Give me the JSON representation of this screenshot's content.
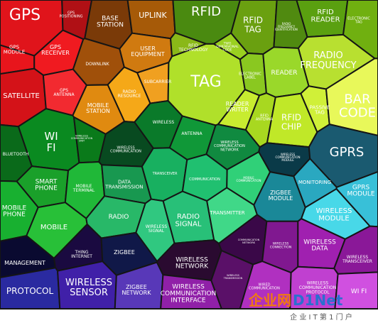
{
  "cells": [
    {
      "label": [
        "GPS"
      ]
    },
    {
      "label": [
        "GPS",
        "POSITIONING"
      ]
    },
    {
      "label": [
        "GPS",
        "MODULE"
      ]
    },
    {
      "label": [
        "GPS",
        "RECEIVER"
      ]
    },
    {
      "label": [
        "SATELLITE"
      ]
    },
    {
      "label": [
        "GPS",
        "ANTENNA"
      ]
    },
    {
      "label": [
        "BASE",
        "STATION"
      ]
    },
    {
      "label": [
        "UPLINK"
      ]
    },
    {
      "label": [
        "USER",
        "EQUIPMENT"
      ]
    },
    {
      "label": [
        "DOWNLINK"
      ]
    },
    {
      "label": [
        "SUBCARRIER"
      ]
    },
    {
      "label": [
        "RADIO",
        "RESOURCE"
      ]
    },
    {
      "label": [
        "MOBILE",
        "STATION"
      ]
    },
    {
      "label": [
        "RFID"
      ]
    },
    {
      "label": [
        "RFID",
        "TECHNOLOGY"
      ]
    },
    {
      "label": [
        "TWO",
        "DIMENSIONAL",
        "CODE"
      ]
    },
    {
      "label": [
        "RFID",
        "TAG"
      ]
    },
    {
      "label": [
        "RADIO",
        "FREQUENCY",
        "IDENTIFICATION"
      ]
    },
    {
      "label": [
        "RFID",
        "READER"
      ]
    },
    {
      "label": [
        "ELECTRONIC",
        "TAG"
      ]
    },
    {
      "label": [
        "RADIO",
        "FREQUENCY"
      ]
    },
    {
      "label": [
        "TAG"
      ]
    },
    {
      "label": [
        "ELECTRONIC",
        "LABEL"
      ]
    },
    {
      "label": [
        "READER"
      ]
    },
    {
      "label": [
        "READER",
        "WRITER"
      ]
    },
    {
      "label": [
        "RFID",
        "ANTENNA"
      ]
    },
    {
      "label": [
        "RFID",
        "CHIP"
      ]
    },
    {
      "label": [
        "PASSIVE",
        "TAG"
      ]
    },
    {
      "label": [
        "BAR",
        "CODE"
      ]
    },
    {
      "label": [
        "WI",
        "FI"
      ]
    },
    {
      "label": [
        "BLUETOOTH"
      ]
    },
    {
      "label": [
        "WIRELESS",
        "COMMUNICATION",
        "UNIT"
      ]
    },
    {
      "label": [
        "SMART",
        "PHONE"
      ]
    },
    {
      "label": [
        "MOBILE",
        "TERMINAL"
      ]
    },
    {
      "label": [
        "MOBILE",
        "PHONE"
      ]
    },
    {
      "label": [
        "MOBILE"
      ]
    },
    {
      "label": [
        "WIRELESS"
      ]
    },
    {
      "label": [
        "ANTENNA"
      ]
    },
    {
      "label": [
        "WIRELESS",
        "COMMUNICATION",
        "NETWORK"
      ]
    },
    {
      "label": [
        "WIRELESS",
        "COMMUNICATION"
      ]
    },
    {
      "label": [
        "TRANSCEIVER"
      ]
    },
    {
      "label": [
        "COMMUNICATION"
      ]
    },
    {
      "label": [
        "MOBILE",
        "COMMUNICATION"
      ]
    },
    {
      "label": [
        "DATA",
        "TRANSMISSION"
      ]
    },
    {
      "label": [
        "RADIO"
      ]
    },
    {
      "label": [
        "WIRELESS",
        "SIGNAL"
      ]
    },
    {
      "label": [
        "RADIO",
        "SIGNAL"
      ]
    },
    {
      "label": [
        "TRANSMITTER"
      ]
    },
    {
      "label": [
        "WIRELESS",
        "COMMUNICATION",
        "MODULE"
      ]
    },
    {
      "label": [
        "GPRS"
      ]
    },
    {
      "label": [
        "MONITORING"
      ]
    },
    {
      "label": [
        "ZIGBEE",
        "MODULE"
      ]
    },
    {
      "label": [
        "GPRS",
        "MODULE"
      ]
    },
    {
      "label": [
        "WIRELESS",
        "MODULE"
      ]
    },
    {
      "label": [
        "MANAGEMENT"
      ]
    },
    {
      "label": [
        "THING",
        "INTERNET"
      ]
    },
    {
      "label": [
        "ZIGBEE"
      ]
    },
    {
      "label": [
        "PROTOCOL"
      ]
    },
    {
      "label": [
        "WIRELESS",
        "SENSOR"
      ]
    },
    {
      "label": [
        "ZIGBEE",
        "NETWORK"
      ]
    },
    {
      "label": [
        "WIRELESS",
        "NETWORK"
      ]
    },
    {
      "label": [
        "WIRELESS",
        "COMMUNICATION",
        "INTERFACE"
      ]
    },
    {
      "label": [
        "COMMUNICATION",
        "NETWORK"
      ]
    },
    {
      "label": [
        "WIRELESS",
        "TRANSMISSION"
      ]
    },
    {
      "label": [
        "WIRELESS",
        "CONNECTION"
      ]
    },
    {
      "label": [
        "WIRELESS",
        "DATA"
      ]
    },
    {
      "label": [
        "WIRELESS",
        "TRANSCEIVER"
      ]
    },
    {
      "label": [
        "WIRED",
        "COMMUNICATION"
      ]
    },
    {
      "label": [
        "WIRELESS",
        "COMMUNICATION",
        "PROTOCOL"
      ]
    },
    {
      "label": [
        "WI FI"
      ]
    }
  ],
  "watermark": {
    "logo_cn": "企业网",
    "logo_en": "D1Net",
    "slogan": "企 业 I T 第 1 门 户"
  }
}
